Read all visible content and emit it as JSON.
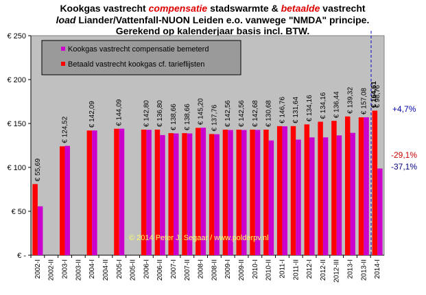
{
  "title": {
    "line1_parts": [
      {
        "text": "Kookgas vastrecht ",
        "color": "#000000",
        "italic": false
      },
      {
        "text": "compensatie",
        "color": "#e00000",
        "italic": true
      },
      {
        "text": " stadswarmte  & ",
        "color": "#000000",
        "italic": false
      },
      {
        "text": "betaalde",
        "color": "#e00000",
        "italic": true
      },
      {
        "text": " vastrecht",
        "color": "#000000",
        "italic": false
      }
    ],
    "line2_parts": [
      {
        "text": "load",
        "color": "#000000",
        "italic": true
      },
      {
        "text": " Liander/Vattenfall-NUON Leiden e.o.  vanwege \"NMDA\"  principe.",
        "color": "#000000",
        "italic": false
      }
    ],
    "line3": "Gerekend op kalenderjaar basis incl. BTW."
  },
  "colors": {
    "compensatie": "#cc00cc",
    "betaald": "#ff0000",
    "plot_bg": "#c0c0c0",
    "legend_bg": "#9a9a9a",
    "guide_line": "#0000cc",
    "annot_up": "#0000aa",
    "annot_red": "#cc0000",
    "annot_blue": "#000080",
    "copyright": "#ffff66"
  },
  "legend": {
    "items": [
      {
        "label": "Kookgas vastrecht compensatie bemeterd",
        "color_key": "compensatie"
      },
      {
        "label": "Betaald vastrecht kookgas cf. tarieflijsten",
        "color_key": "betaald"
      }
    ]
  },
  "copyright": "© 2014 Peter J. Segaar / www.polderpv.nl",
  "annotations": {
    "plus": "+4,7%",
    "minus_red": "-29,1%",
    "minus_blue": "-37,1%"
  },
  "chart_data": {
    "type": "bar",
    "categories": [
      "2002-I",
      "2002-II",
      "2003-I",
      "2003-II",
      "2004-I",
      "2004-II",
      "2005-I",
      "2005-II",
      "2006-I",
      "2006-II",
      "2007-I",
      "2007-II",
      "2008-I",
      "2008-II",
      "2009-I",
      "2009-II",
      "2010-I",
      "2010-II",
      "2011-I",
      "2011-II",
      "2012-I",
      "2012-II",
      "2012-III",
      "2013-I",
      "2013-II",
      "2014-I"
    ],
    "series": [
      {
        "name": "Betaald vastrecht kookgas cf. tarieflijsten",
        "color_key": "betaald",
        "values": [
          81,
          null,
          124,
          null,
          142,
          null,
          144,
          null,
          143,
          143,
          139,
          139,
          145,
          138,
          143,
          143,
          143,
          143,
          147,
          147,
          149,
          152,
          153,
          158,
          157,
          164.61
        ]
      },
      {
        "name": "Kookgas vastrecht compensatie bemeterd",
        "color_key": "compensatie",
        "values": [
          55.69,
          null,
          124.52,
          null,
          142.09,
          null,
          144.09,
          null,
          142.8,
          136.8,
          138.66,
          138.66,
          145.2,
          137.76,
          142.56,
          142.56,
          142.68,
          130.68,
          146.76,
          131.64,
          134.16,
          134.16,
          136.44,
          139.32,
          157.08,
          98.76
        ]
      }
    ],
    "value_labels": [
      "€ 55,69",
      "",
      "€ 124,52",
      "",
      "€ 142,09",
      "",
      "€ 144,09",
      "",
      "€ 142,80",
      "€ 136,80",
      "€ 138,66",
      "€ 138,66",
      "€ 145,20",
      "€ 137,76",
      "€ 142,56",
      "€ 142,56",
      "€ 142,68",
      "€ 130,68",
      "€ 146,76",
      "€ 131,64",
      "€ 134,16",
      "€ 134,16",
      "€ 136,44",
      "€ 139,32",
      "€ 157,08",
      "€ 98,76"
    ],
    "top_label": "€ 164,61",
    "y_ticks": [
      "€ -",
      "€ 50",
      "€ 100",
      "€ 150",
      "€ 200",
      "€ 250"
    ],
    "ylim": [
      0,
      250
    ],
    "y_step": 50,
    "grid": false,
    "legend_position": "top-left"
  }
}
